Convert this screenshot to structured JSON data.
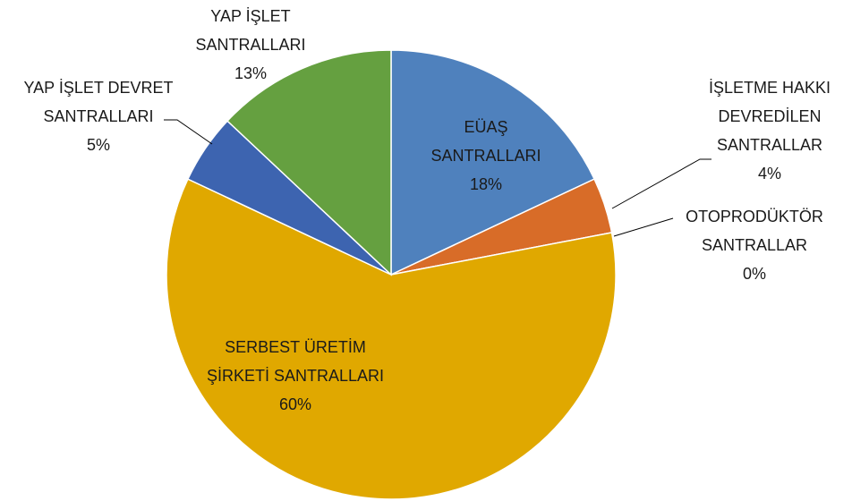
{
  "chart_data": {
    "type": "pie",
    "categories": [
      "EÜAŞ SANTRALLARI",
      "İŞLETME HAKKI DEVREDİLEN SANTRALLAR",
      "OTOPRODÜKTÖR SANTRALLAR",
      "SERBEST ÜRETİM ŞİRKETİ SANTRALLARI",
      "YAP İŞLET DEVRET SANTRALLARI",
      "YAP İŞLET SANTRALLARI"
    ],
    "values": [
      18,
      4,
      0,
      60,
      5,
      13
    ],
    "value_labels": [
      "18%",
      "4%",
      "0%",
      "60%",
      "5%",
      "13%"
    ],
    "colors": [
      "#4f81bd",
      "#d86c28",
      "#a0a0a0",
      "#e0a800",
      "#3d64b0",
      "#65a040"
    ]
  }
}
